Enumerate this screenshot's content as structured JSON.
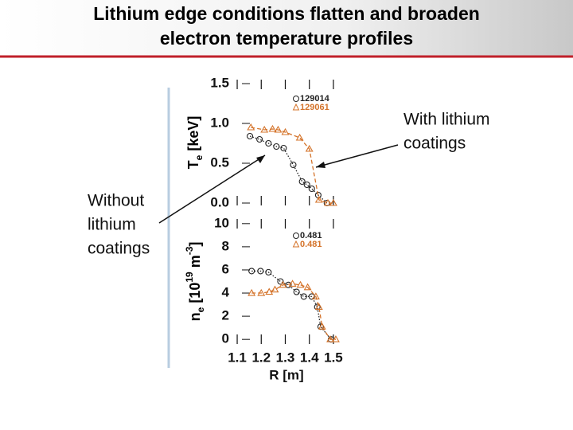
{
  "title_lines": [
    "Lithium edge conditions flatten and broaden",
    "electron temperature profiles"
  ],
  "annotations": [
    {
      "lines": [
        "With lithium",
        "coatings"
      ]
    },
    {
      "lines": [
        "Without",
        "lithium",
        "coatings"
      ]
    }
  ],
  "chart_data": [
    {
      "type": "line",
      "ylabel_parts": [
        {
          "text": "T"
        },
        {
          "text": "e",
          "shift": "sub"
        },
        {
          "text": " [keV]"
        }
      ],
      "xlim": [
        1.08,
        1.53
      ],
      "xticks": [
        1.1,
        1.2,
        1.3,
        1.4,
        1.5
      ],
      "xtick_labels": false,
      "ylim": [
        -0.03,
        1.55
      ],
      "yticks": [
        {
          "value": 0,
          "label": "0.0"
        },
        0.5,
        {
          "value": 1,
          "label": "1.0"
        },
        1.5
      ],
      "series": [
        {
          "name": "129014",
          "color": "#222222",
          "marker": "circle",
          "linestyle": "dotted",
          "x": [
            1.153,
            1.193,
            1.23,
            1.263,
            1.293,
            1.333,
            1.37,
            1.39,
            1.41,
            1.437,
            1.473
          ],
          "values": [
            0.84,
            0.8,
            0.75,
            0.71,
            0.69,
            0.48,
            0.27,
            0.23,
            0.18,
            0.1,
            0.0
          ]
        },
        {
          "name": "129061",
          "color": "#d4732a",
          "marker": "triangle",
          "linestyle": "dashed",
          "x": [
            1.157,
            1.213,
            1.247,
            1.27,
            1.3,
            1.36,
            1.4,
            1.44,
            1.477,
            1.5
          ],
          "values": [
            0.95,
            0.92,
            0.93,
            0.92,
            0.89,
            0.82,
            0.68,
            0.04,
            0.0,
            0.0
          ]
        }
      ]
    },
    {
      "type": "line",
      "xlabel": "R [m]",
      "ylabel_parts": [
        {
          "text": "n"
        },
        {
          "text": "e",
          "shift": "sub"
        },
        {
          "text": " [10"
        },
        {
          "text": "19",
          "shift": "super"
        },
        {
          "text": " m"
        },
        {
          "text": "-3",
          "shift": "super"
        },
        {
          "text": "]"
        }
      ],
      "xlim": [
        1.08,
        1.53
      ],
      "xticks": [
        1.1,
        1.2,
        1.3,
        1.4,
        1.5
      ],
      "xtick_labels": true,
      "ylim": [
        -0.4,
        10.4
      ],
      "yticks": [
        0,
        2,
        4,
        6,
        8,
        10
      ],
      "series": [
        {
          "name": "0.481",
          "color": "#222222",
          "marker": "circle",
          "linestyle": "dotted",
          "x": [
            1.16,
            1.197,
            1.23,
            1.28,
            1.313,
            1.347,
            1.377,
            1.41,
            1.433,
            1.447,
            1.49
          ],
          "values": [
            5.9,
            5.9,
            5.8,
            5.0,
            4.7,
            4.1,
            3.7,
            3.7,
            2.8,
            1.1,
            0.0
          ]
        },
        {
          "name": "0.481",
          "color": "#d4732a",
          "marker": "triangle",
          "linestyle": "dashed",
          "x": [
            1.16,
            1.2,
            1.233,
            1.257,
            1.29,
            1.33,
            1.363,
            1.393,
            1.427,
            1.44,
            1.453,
            1.487,
            1.51
          ],
          "values": [
            4.0,
            4.0,
            4.1,
            4.3,
            4.7,
            4.8,
            4.7,
            4.5,
            3.7,
            2.8,
            1.1,
            0.0,
            0.0
          ]
        }
      ]
    }
  ]
}
